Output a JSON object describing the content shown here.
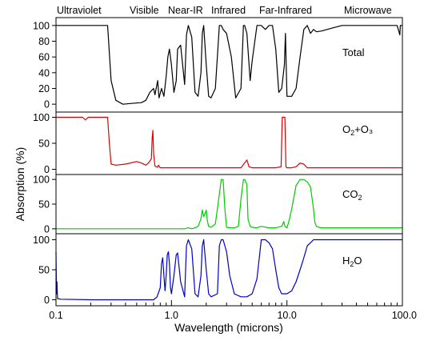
{
  "chart_data": {
    "type": "line",
    "xlabel": "Wavelength (microns)",
    "ylabel": "Absorption (%)",
    "x_scale": "log",
    "xlim": [
      0.1,
      100.0
    ],
    "x_ticks": [
      {
        "value": 0.1,
        "label": "0.1"
      },
      {
        "value": 1.0,
        "label": "1.0"
      },
      {
        "value": 10.0,
        "label": "10.0"
      },
      {
        "value": 100.0,
        "label": "100.0"
      }
    ],
    "bands": [
      {
        "label": "Ultraviolet"
      },
      {
        "label": "Visible"
      },
      {
        "label": "Near-IR"
      },
      {
        "label": "Infrared"
      },
      {
        "label": "Far-Infrared"
      },
      {
        "label": "Microwave"
      }
    ],
    "panels": [
      {
        "label": "Total",
        "label_sub": "",
        "label_tail": "",
        "color": "#000000",
        "ylim": [
          -10,
          110
        ],
        "y_ticks": [
          0,
          20,
          40,
          60,
          80,
          100
        ],
        "x": [
          0.1,
          0.28,
          0.3,
          0.33,
          0.38,
          0.45,
          0.55,
          0.6,
          0.65,
          0.7,
          0.72,
          0.76,
          0.78,
          0.82,
          0.86,
          0.9,
          0.93,
          0.96,
          1.0,
          1.05,
          1.1,
          1.13,
          1.2,
          1.3,
          1.35,
          1.4,
          1.5,
          1.6,
          1.7,
          1.8,
          1.85,
          1.9,
          2.0,
          2.1,
          2.2,
          2.4,
          2.6,
          2.7,
          2.8,
          3.0,
          3.3,
          3.6,
          4.0,
          4.2,
          4.3,
          4.5,
          4.8,
          5.0,
          5.5,
          6.0,
          6.5,
          7.0,
          7.5,
          8.0,
          8.5,
          9.0,
          9.5,
          9.7,
          10.0,
          11.0,
          12.0,
          13.0,
          14.0,
          15.0,
          16.0,
          17.0,
          18.0,
          20.0,
          25.0,
          30.0,
          40.0,
          60.0,
          90.0,
          95.0,
          96.0,
          100.0
        ],
        "y": [
          100,
          100,
          30,
          5,
          0,
          1,
          2,
          5,
          15,
          20,
          12,
          30,
          8,
          20,
          10,
          35,
          60,
          70,
          50,
          15,
          30,
          70,
          75,
          25,
          88,
          100,
          85,
          15,
          10,
          40,
          90,
          100,
          50,
          10,
          8,
          20,
          100,
          100,
          95,
          90,
          60,
          8,
          20,
          100,
          100,
          90,
          30,
          55,
          100,
          100,
          95,
          100,
          100,
          70,
          15,
          20,
          50,
          90,
          10,
          10,
          20,
          60,
          95,
          100,
          90,
          95,
          92,
          93,
          97,
          100,
          100,
          100,
          100,
          88,
          100,
          100
        ]
      },
      {
        "label": "O",
        "label_sub": "2",
        "label_tail": "+O₃",
        "color": "#e00000",
        "ylim": [
          -10,
          110
        ],
        "y_ticks": [
          0,
          50,
          100
        ],
        "x": [
          0.1,
          0.17,
          0.18,
          0.19,
          0.2,
          0.25,
          0.28,
          0.29,
          0.3,
          0.33,
          0.4,
          0.5,
          0.55,
          0.6,
          0.63,
          0.67,
          0.68,
          0.69,
          0.7,
          0.72,
          0.76,
          0.77,
          0.8,
          1.0,
          2.0,
          4.0,
          4.5,
          4.7,
          5.0,
          8.0,
          8.9,
          9.1,
          9.3,
          9.6,
          9.8,
          10.0,
          11.0,
          12.0,
          13.0,
          14.0,
          15.0,
          20.0,
          40.0,
          100.0
        ],
        "y": [
          100,
          100,
          95,
          100,
          100,
          100,
          100,
          50,
          10,
          8,
          10,
          15,
          12,
          8,
          12,
          20,
          60,
          75,
          30,
          6,
          4,
          8,
          3,
          3,
          3,
          3,
          18,
          5,
          3,
          3,
          5,
          100,
          100,
          100,
          5,
          3,
          3,
          5,
          12,
          10,
          3,
          3,
          3,
          3
        ]
      },
      {
        "label": "CO",
        "label_sub": "2",
        "label_tail": "",
        "color": "#00cc00",
        "ylim": [
          -10,
          110
        ],
        "y_ticks": [
          0,
          50,
          100
        ],
        "x": [
          0.1,
          1.3,
          1.4,
          1.5,
          1.6,
          1.7,
          1.8,
          1.85,
          1.9,
          1.95,
          2.0,
          2.05,
          2.1,
          2.2,
          2.4,
          2.6,
          2.7,
          2.8,
          2.9,
          3.0,
          3.3,
          3.5,
          3.8,
          4.0,
          4.2,
          4.3,
          4.5,
          4.6,
          4.8,
          5.0,
          5.5,
          6.0,
          7.0,
          8.0,
          9.0,
          9.4,
          9.6,
          10.0,
          10.4,
          11.0,
          12.0,
          13.0,
          14.0,
          15.0,
          16.0,
          17.0,
          17.5,
          18.0,
          19.0,
          20.0,
          30.0,
          50.0,
          100.0
        ],
        "y": [
          0,
          0,
          2,
          0,
          2,
          5,
          20,
          38,
          25,
          30,
          38,
          15,
          5,
          3,
          10,
          70,
          100,
          100,
          40,
          3,
          2,
          2,
          5,
          60,
          100,
          100,
          90,
          20,
          5,
          3,
          2,
          5,
          2,
          2,
          5,
          15,
          5,
          2,
          15,
          40,
          88,
          100,
          100,
          95,
          85,
          40,
          12,
          5,
          3,
          2,
          2,
          2,
          2
        ]
      },
      {
        "label": "H",
        "label_sub": "2",
        "label_tail": "O",
        "color": "#0000cc",
        "ylim": [
          -10,
          110
        ],
        "y_ticks": [
          0,
          50,
          100
        ],
        "x": [
          0.1,
          0.101,
          0.102,
          0.103,
          0.11,
          0.2,
          0.5,
          0.7,
          0.75,
          0.8,
          0.82,
          0.84,
          0.86,
          0.88,
          0.9,
          0.92,
          0.94,
          0.96,
          0.98,
          1.0,
          1.05,
          1.1,
          1.13,
          1.2,
          1.3,
          1.35,
          1.4,
          1.5,
          1.6,
          1.7,
          1.8,
          1.85,
          1.9,
          2.0,
          2.1,
          2.2,
          2.5,
          2.6,
          2.7,
          2.8,
          3.0,
          3.2,
          3.5,
          4.0,
          4.5,
          5.0,
          5.5,
          6.0,
          6.5,
          7.0,
          7.5,
          8.0,
          8.5,
          9.0,
          10.0,
          11.0,
          12.0,
          13.0,
          14.0,
          15.0,
          16.0,
          17.0,
          18.0,
          20.0,
          30.0,
          50.0,
          100.0
        ],
        "y": [
          80,
          10,
          30,
          2,
          1,
          0,
          0,
          0,
          5,
          20,
          60,
          70,
          40,
          15,
          40,
          75,
          80,
          60,
          20,
          10,
          40,
          75,
          78,
          30,
          5,
          90,
          100,
          85,
          10,
          5,
          40,
          90,
          100,
          50,
          10,
          5,
          10,
          90,
          100,
          100,
          80,
          40,
          10,
          5,
          5,
          10,
          35,
          100,
          100,
          95,
          85,
          50,
          20,
          10,
          10,
          15,
          30,
          50,
          70,
          90,
          95,
          100,
          100,
          100,
          100,
          100,
          100
        ]
      }
    ]
  }
}
